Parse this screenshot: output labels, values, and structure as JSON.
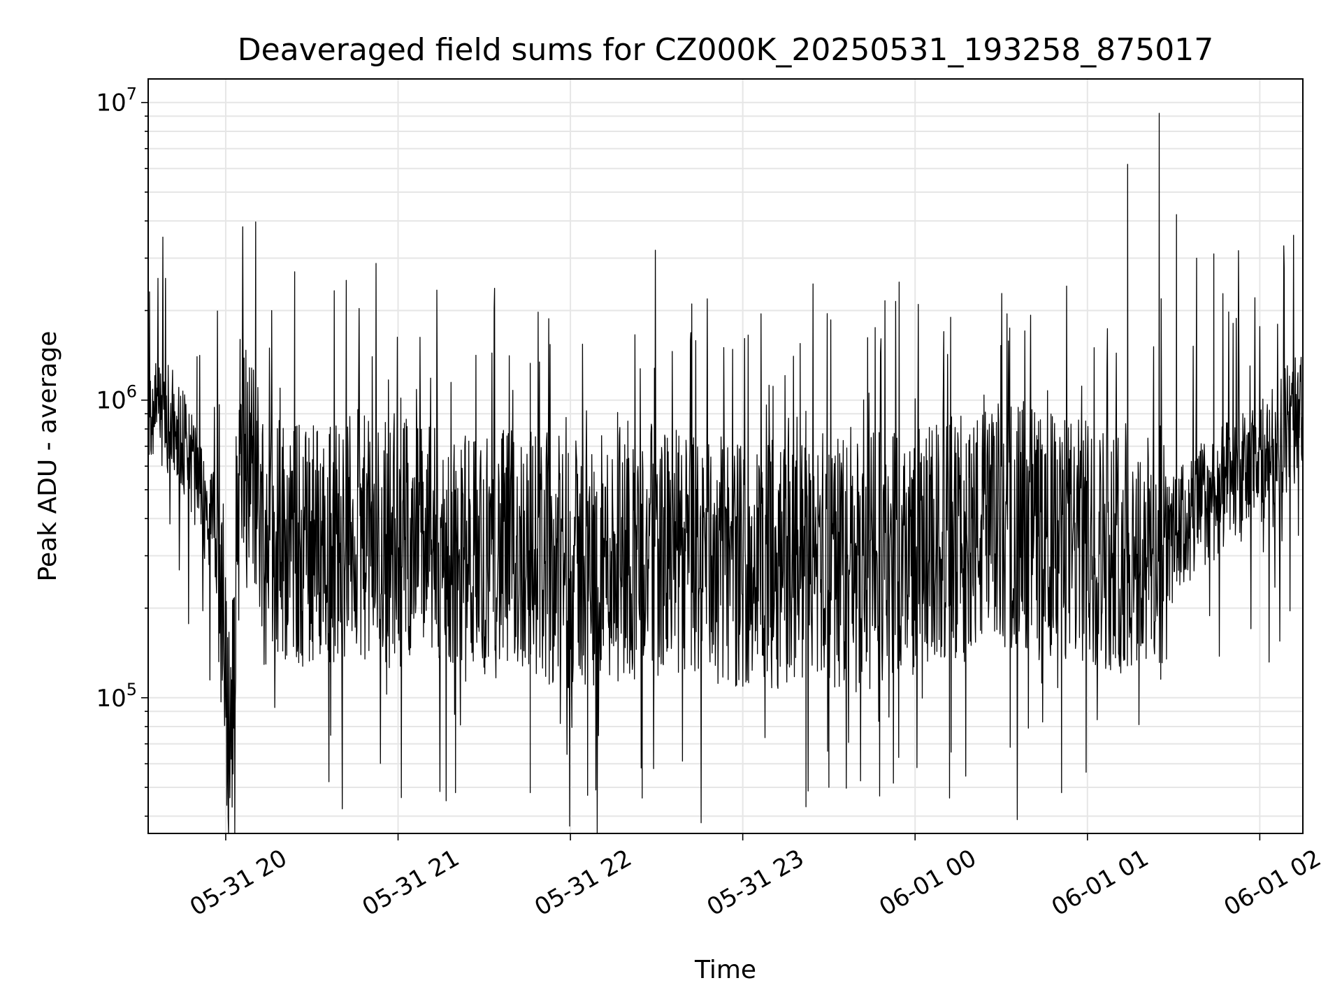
{
  "chart_data": {
    "type": "line",
    "title": "Deaveraged field sums for CZ000K_20250531_193258_875017",
    "xlabel": "Time",
    "ylabel": "Peak ADU - average",
    "x_axis": {
      "kind": "date",
      "range": [
        "2025-05-31T19:33:00",
        "2025-06-01T02:15:00"
      ],
      "ticks": [
        {
          "value": "2025-05-31T20:00:00",
          "label": "05-31 20"
        },
        {
          "value": "2025-05-31T21:00:00",
          "label": "05-31 21"
        },
        {
          "value": "2025-05-31T22:00:00",
          "label": "05-31 22"
        },
        {
          "value": "2025-05-31T23:00:00",
          "label": "05-31 23"
        },
        {
          "value": "2025-06-01T00:00:00",
          "label": "06-01 00"
        },
        {
          "value": "2025-06-01T01:00:00",
          "label": "06-01 01"
        },
        {
          "value": "2025-06-01T02:00:00",
          "label": "06-01 02"
        }
      ]
    },
    "y_axis": {
      "scale": "log",
      "range": [
        35000,
        12000000
      ],
      "ticks": [
        {
          "value": 100000,
          "base": "10",
          "exp": "5"
        },
        {
          "value": 1000000,
          "base": "10",
          "exp": "6"
        },
        {
          "value": 10000000,
          "base": "10",
          "exp": "7"
        }
      ]
    },
    "grid": true,
    "legend": "none",
    "line_color": "#000000",
    "series": [
      {
        "x": [
          "2025-05-31T19:33:00",
          "2025-05-31T19:36:00",
          "2025-05-31T19:40:00",
          "2025-05-31T19:43:00",
          "2025-05-31T19:46:00",
          "2025-05-31T19:50:00",
          "2025-05-31T19:53:00",
          "2025-05-31T19:56:00",
          "2025-05-31T19:58:00",
          "2025-05-31T20:00:00",
          "2025-05-31T20:01:00",
          "2025-05-31T20:02:00",
          "2025-05-31T20:04:00",
          "2025-05-31T20:06:00",
          "2025-05-31T20:09:00",
          "2025-05-31T20:12:00",
          "2025-05-31T20:15:00",
          "2025-05-31T20:18:00",
          "2025-05-31T20:21:00",
          "2025-05-31T20:25:00",
          "2025-05-31T20:30:00",
          "2025-05-31T20:35:00",
          "2025-05-31T20:40:00",
          "2025-05-31T20:45:00",
          "2025-05-31T20:50:00",
          "2025-05-31T20:55:00",
          "2025-05-31T21:00:00",
          "2025-05-31T21:05:00",
          "2025-05-31T21:10:00",
          "2025-05-31T21:15:00",
          "2025-05-31T21:20:00",
          "2025-05-31T21:25:00",
          "2025-05-31T21:30:00",
          "2025-05-31T21:35:00",
          "2025-05-31T21:40:00",
          "2025-05-31T21:45:00",
          "2025-05-31T21:50:00",
          "2025-05-31T21:55:00",
          "2025-05-31T22:00:00",
          "2025-05-31T22:10:00",
          "2025-05-31T22:20:00",
          "2025-05-31T22:30:00",
          "2025-05-31T22:40:00",
          "2025-05-31T22:50:00",
          "2025-05-31T23:00:00",
          "2025-05-31T23:10:00",
          "2025-05-31T23:20:00",
          "2025-05-31T23:30:00",
          "2025-05-31T23:40:00",
          "2025-05-31T23:50:00",
          "2025-06-01T00:00:00",
          "2025-06-01T00:10:00",
          "2025-06-01T00:20:00",
          "2025-06-01T00:30:00",
          "2025-06-01T00:40:00",
          "2025-06-01T00:50:00",
          "2025-06-01T01:00:00",
          "2025-06-01T01:10:00",
          "2025-06-01T01:20:00",
          "2025-06-01T01:30:00",
          "2025-06-01T01:40:00",
          "2025-06-01T01:50:00",
          "2025-06-01T02:00:00",
          "2025-06-01T02:08:00",
          "2025-06-01T02:15:00"
        ],
        "y": [
          900000,
          900000,
          880000,
          850000,
          700000,
          550000,
          420000,
          380000,
          200000,
          100000,
          75000,
          90000,
          400000,
          650000,
          600000,
          450000,
          380000,
          360000,
          340000,
          330000,
          330000,
          340000,
          350000,
          360000,
          330000,
          320000,
          330000,
          360000,
          330000,
          300000,
          290000,
          300000,
          310000,
          300000,
          310000,
          320000,
          300000,
          290000,
          280000,
          290000,
          300000,
          310000,
          300000,
          300000,
          280000,
          280000,
          290000,
          280000,
          290000,
          300000,
          310000,
          330000,
          350000,
          380000,
          380000,
          340000,
          330000,
          320000,
          300000,
          340000,
          450000,
          520000,
          600000,
          780000,
          900000
        ],
        "spikes": [
          {
            "x": "2025-05-31T19:39:00",
            "y": 2300000
          },
          {
            "x": "2025-05-31T19:50:00",
            "y": 1400000
          },
          {
            "x": "2025-05-31T20:05:00",
            "y": 1600000
          },
          {
            "x": "2025-05-31T20:16:00",
            "y": 2000000
          },
          {
            "x": "2025-05-31T20:24:00",
            "y": 2700000
          },
          {
            "x": "2025-05-31T20:51:00",
            "y": 1400000
          },
          {
            "x": "2025-05-31T21:46:00",
            "y": 1330000
          },
          {
            "x": "2025-05-31T22:20:00",
            "y": 850000
          },
          {
            "x": "2025-05-31T23:20:00",
            "y": 1550000
          },
          {
            "x": "2025-06-01T00:10:00",
            "y": 1700000
          },
          {
            "x": "2025-06-01T00:32:00",
            "y": 1950000
          },
          {
            "x": "2025-06-01T01:14:00",
            "y": 6200000
          },
          {
            "x": "2025-06-01T01:25:00",
            "y": 9200000
          },
          {
            "x": "2025-06-01T01:31:00",
            "y": 4200000
          },
          {
            "x": "2025-06-01T01:38:00",
            "y": 3000000
          },
          {
            "x": "2025-06-01T01:44:00",
            "y": 3100000
          }
        ],
        "dips": [
          {
            "x": "2025-05-31T21:20:00",
            "y": 48000
          },
          {
            "x": "2025-05-31T21:46:00",
            "y": 48000
          },
          {
            "x": "2025-05-31T22:06:00",
            "y": 47000
          },
          {
            "x": "2025-05-31T22:25:00",
            "y": 46000
          },
          {
            "x": "2025-05-31T23:22:00",
            "y": 43000
          },
          {
            "x": "2025-05-31T23:30:00",
            "y": 50000
          },
          {
            "x": "2025-06-01T00:12:00",
            "y": 46000
          },
          {
            "x": "2025-06-01T00:51:00",
            "y": 48000
          }
        ]
      }
    ]
  }
}
